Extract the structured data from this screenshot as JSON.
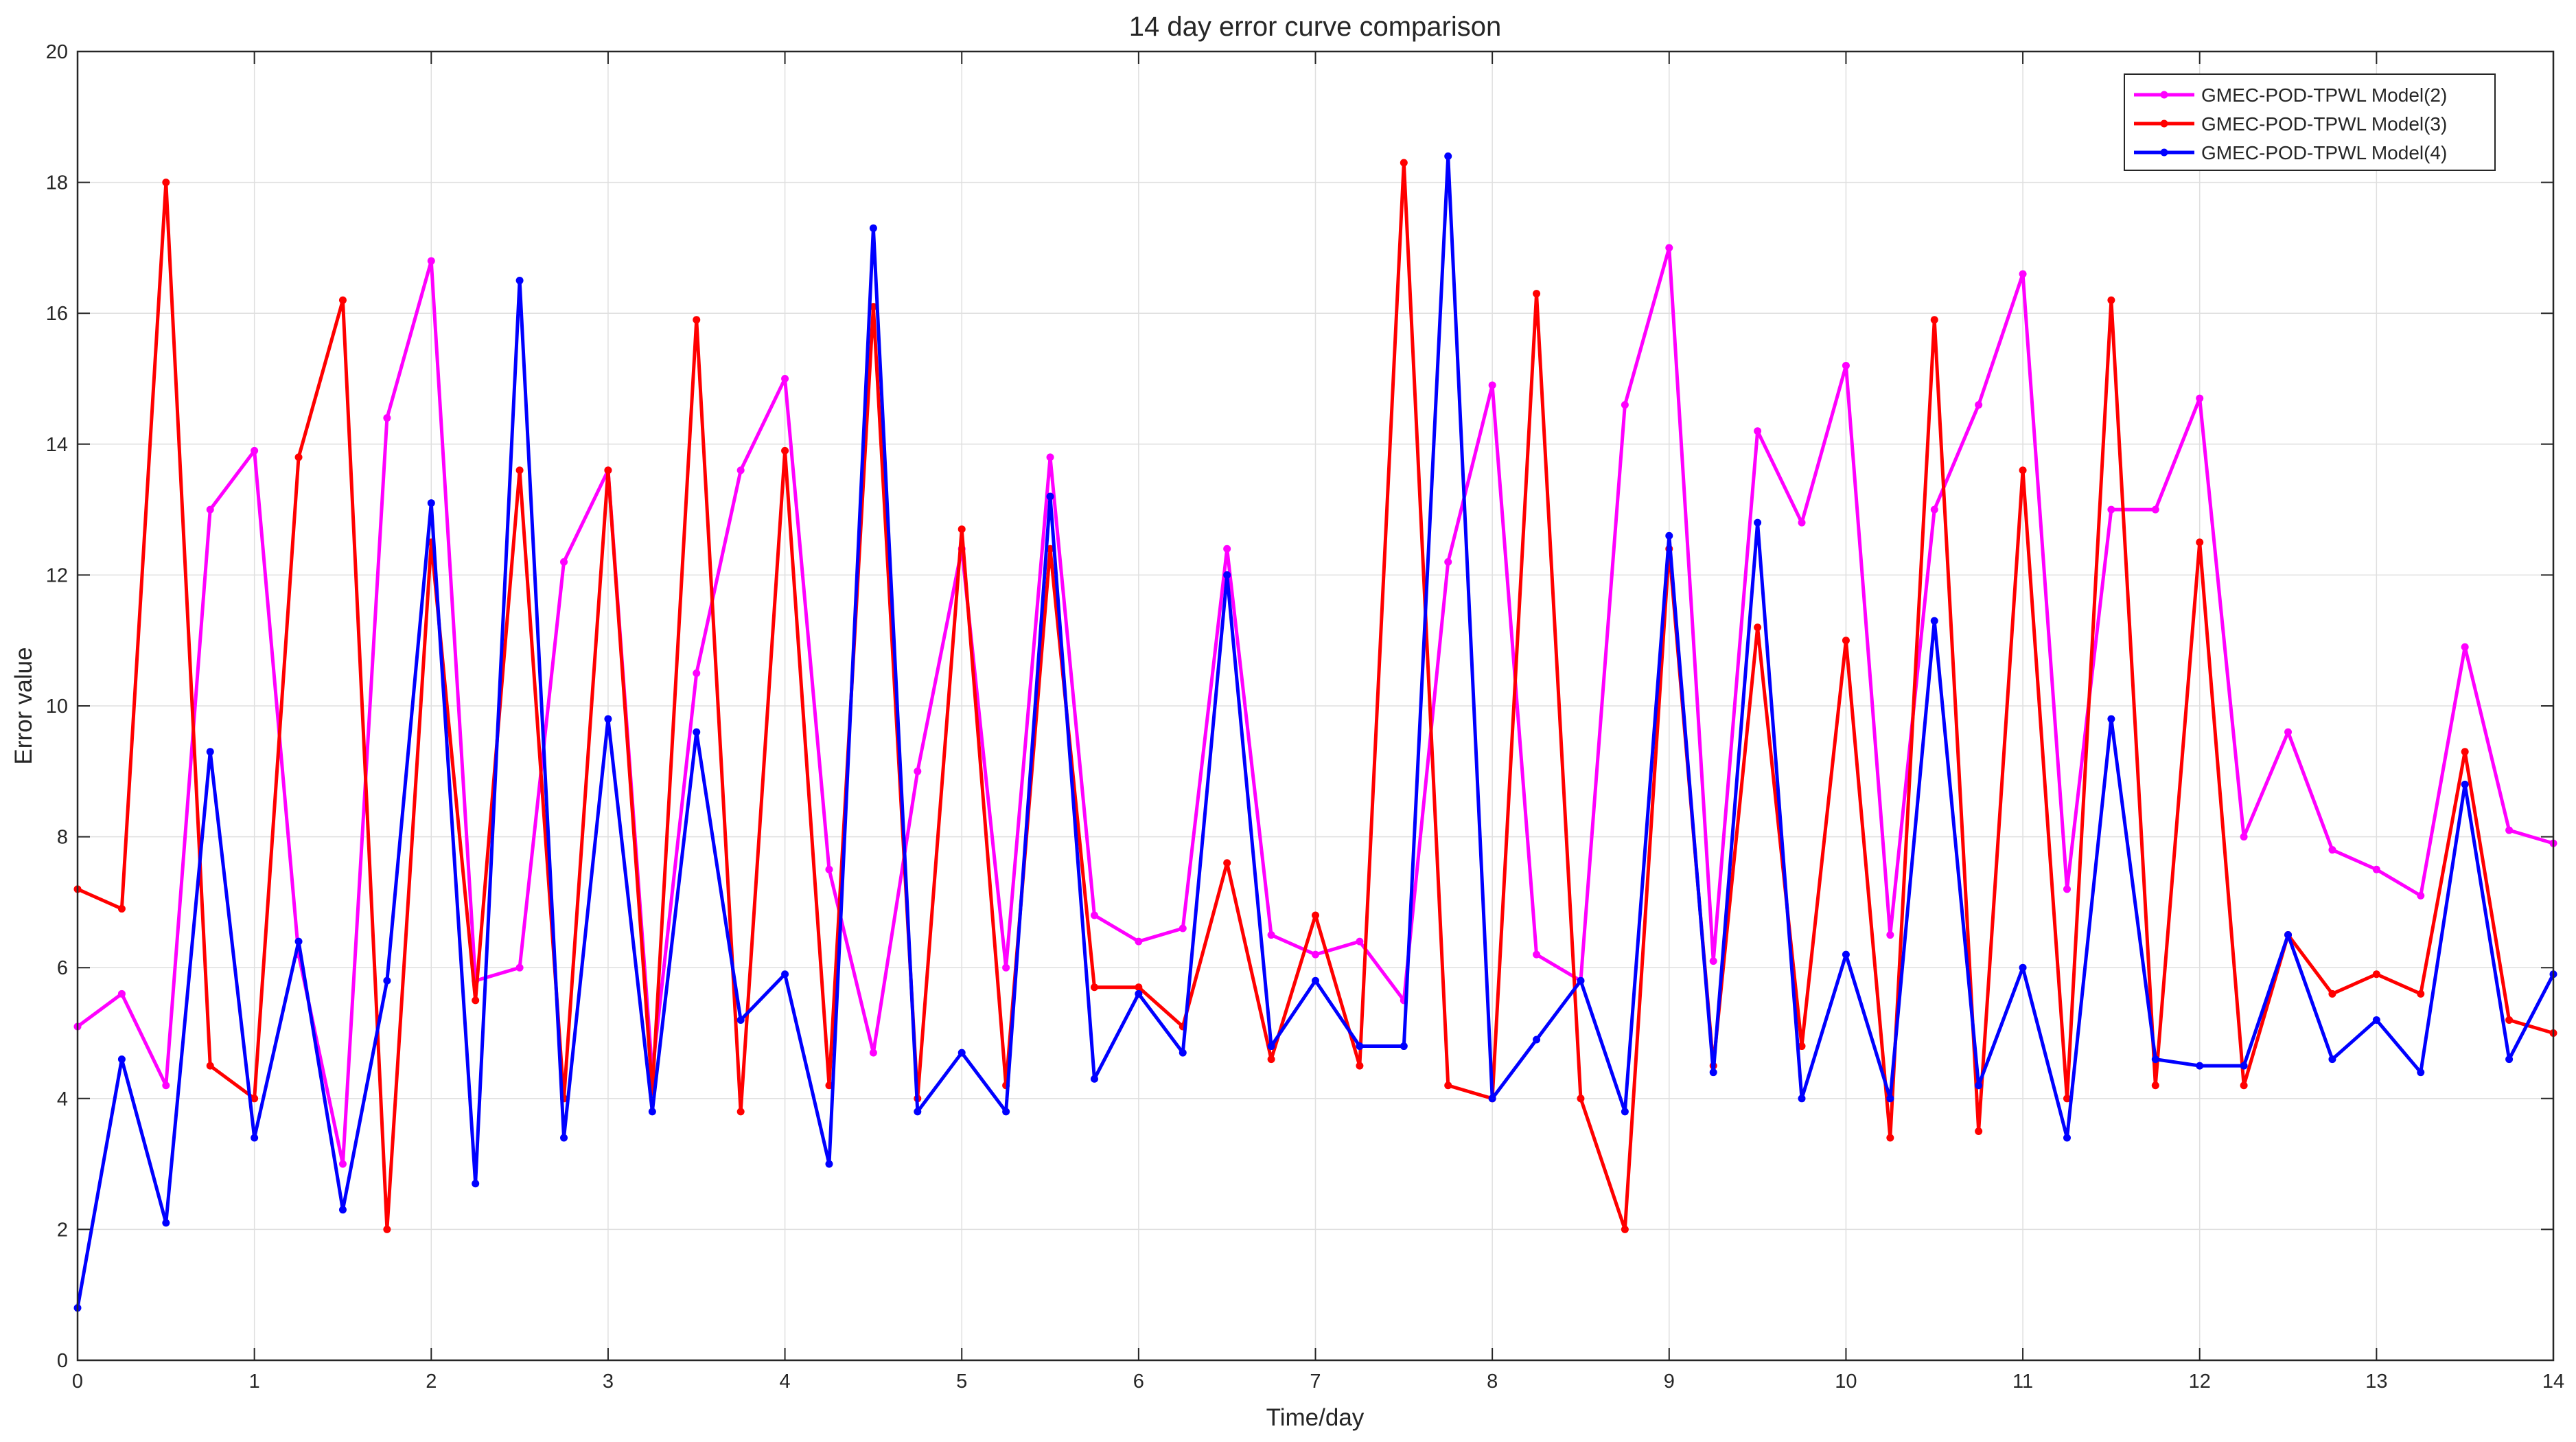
{
  "chart_data": {
    "type": "line",
    "title": "14 day error curve comparison",
    "xlabel": "Time/day",
    "ylabel": "Error value",
    "xlim": [
      0,
      14
    ],
    "ylim": [
      0,
      20
    ],
    "xticks": [
      0,
      1,
      2,
      3,
      4,
      5,
      6,
      7,
      8,
      9,
      10,
      11,
      12,
      13,
      14
    ],
    "yticks": [
      0,
      2,
      4,
      6,
      8,
      10,
      12,
      14,
      16,
      18,
      20
    ],
    "grid": true,
    "legend_position": "top-right",
    "x": [
      0,
      0.25,
      0.5,
      0.75,
      1,
      1.25,
      1.5,
      1.75,
      2,
      2.25,
      2.5,
      2.75,
      3,
      3.25,
      3.5,
      3.75,
      4,
      4.25,
      4.5,
      4.75,
      5,
      5.25,
      5.5,
      5.75,
      6,
      6.25,
      6.5,
      6.75,
      7,
      7.25,
      7.5,
      7.75,
      8,
      8.25,
      8.5,
      8.75,
      9,
      9.25,
      9.5,
      9.75,
      10,
      10.25,
      10.5,
      10.75,
      11,
      11.25,
      11.5,
      11.75,
      12,
      12.25,
      12.5,
      12.75,
      13,
      13.25,
      13.5,
      13.75,
      14
    ],
    "series": [
      {
        "name": "GMEC-POD-TPWL Model(2)",
        "color": "#ff00ff",
        "values": [
          5.1,
          5.6,
          4.2,
          13.0,
          13.9,
          6.2,
          3.0,
          14.4,
          16.8,
          5.8,
          6.0,
          12.2,
          13.6,
          4.4,
          10.5,
          13.6,
          15.0,
          7.5,
          4.7,
          9.0,
          12.4,
          6.0,
          13.8,
          6.8,
          6.4,
          6.6,
          12.4,
          6.5,
          6.2,
          6.4,
          5.5,
          12.2,
          14.9,
          6.2,
          5.8,
          14.6,
          17.0,
          6.1,
          14.2,
          12.8,
          15.2,
          6.5,
          13.0,
          14.6,
          16.6,
          7.2,
          13.0,
          13.0,
          14.7,
          8.0,
          9.6,
          7.8,
          7.5,
          7.1,
          10.9,
          8.1,
          7.9
        ]
      },
      {
        "name": "GMEC-POD-TPWL Model(3)",
        "color": "#ff0000",
        "values": [
          7.2,
          6.9,
          18.0,
          4.5,
          4.0,
          13.8,
          16.2,
          2.0,
          12.5,
          5.5,
          13.6,
          4.0,
          13.6,
          4.1,
          15.9,
          3.8,
          13.9,
          4.2,
          16.1,
          4.0,
          12.7,
          4.2,
          12.4,
          5.7,
          5.7,
          5.1,
          7.6,
          4.6,
          6.8,
          4.5,
          18.3,
          4.2,
          4.0,
          16.3,
          4.0,
          2.0,
          12.4,
          4.5,
          11.2,
          4.8,
          11.0,
          3.4,
          15.9,
          3.5,
          13.6,
          4.0,
          16.2,
          4.2,
          12.5,
          4.2,
          6.5,
          5.6,
          5.9,
          5.6,
          9.3,
          5.2,
          5.0
        ]
      },
      {
        "name": "GMEC-POD-TPWL Model(4)",
        "color": "#0000ff",
        "values": [
          0.8,
          4.6,
          2.1,
          9.3,
          3.4,
          6.4,
          2.3,
          5.8,
          13.1,
          2.7,
          16.5,
          3.4,
          9.8,
          3.8,
          9.6,
          5.2,
          5.9,
          3.0,
          17.3,
          3.8,
          4.7,
          3.8,
          13.2,
          4.3,
          5.6,
          4.7,
          12.0,
          4.8,
          5.8,
          4.8,
          4.8,
          18.4,
          4.0,
          4.9,
          5.8,
          3.8,
          12.6,
          4.4,
          12.8,
          4.0,
          6.2,
          4.0,
          11.3,
          4.2,
          6.0,
          3.4,
          9.8,
          4.6,
          4.5,
          4.5,
          6.5,
          4.6,
          5.2,
          4.4,
          8.8,
          4.6,
          5.9
        ]
      }
    ]
  }
}
